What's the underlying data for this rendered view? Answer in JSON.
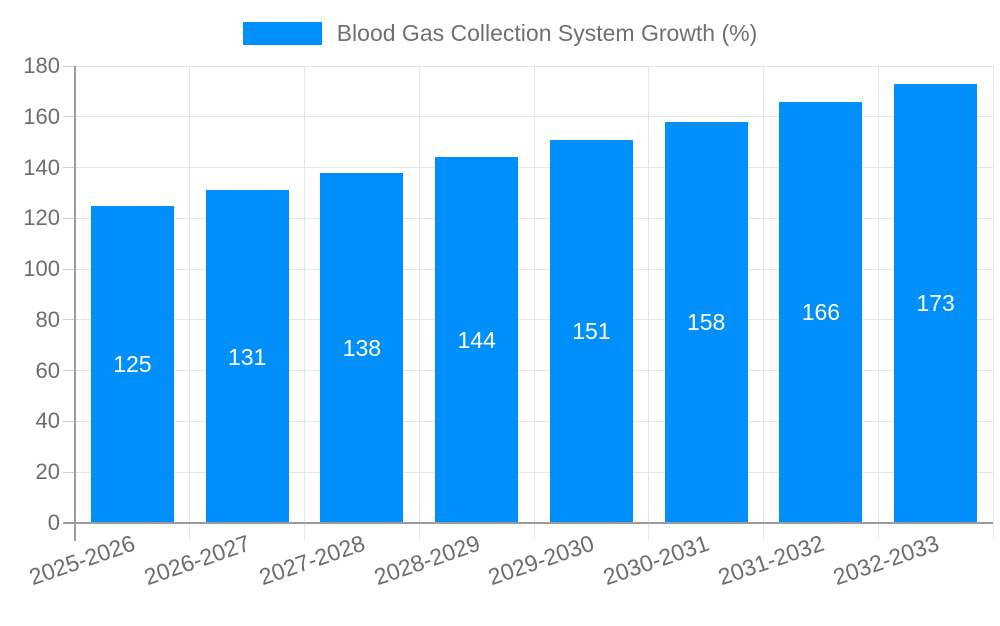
{
  "legend": {
    "label": "Blood Gas Collection System Growth (%)"
  },
  "chart_data": {
    "type": "bar",
    "title": "Blood Gas Collection System Growth (%)",
    "categories": [
      "2025-2026",
      "2026-2027",
      "2027-2028",
      "2028-2029",
      "2029-2030",
      "2030-2031",
      "2031-2032",
      "2032-2033"
    ],
    "values": [
      125,
      131,
      138,
      144,
      151,
      158,
      166,
      173
    ],
    "series": [
      {
        "name": "Blood Gas Collection System Growth (%)",
        "values": [
          125,
          131,
          138,
          144,
          151,
          158,
          166,
          173
        ]
      }
    ],
    "xlabel": "",
    "ylabel": "",
    "ylim": [
      0,
      180
    ],
    "y_ticks": [
      0,
      20,
      40,
      60,
      80,
      100,
      120,
      140,
      160,
      180
    ],
    "grid": true,
    "legend_position": "top-center",
    "data_labels": "inside-center",
    "colors": {
      "bar": "#008FFB",
      "grid": "#e6e6e6",
      "axis_line": "#9c9c9c",
      "tick_line": "#cfcfcf",
      "axis_text": "#6d6d6d",
      "value_label": "#ffffff",
      "legend_text": "#707070",
      "background": "#ffffff"
    }
  }
}
